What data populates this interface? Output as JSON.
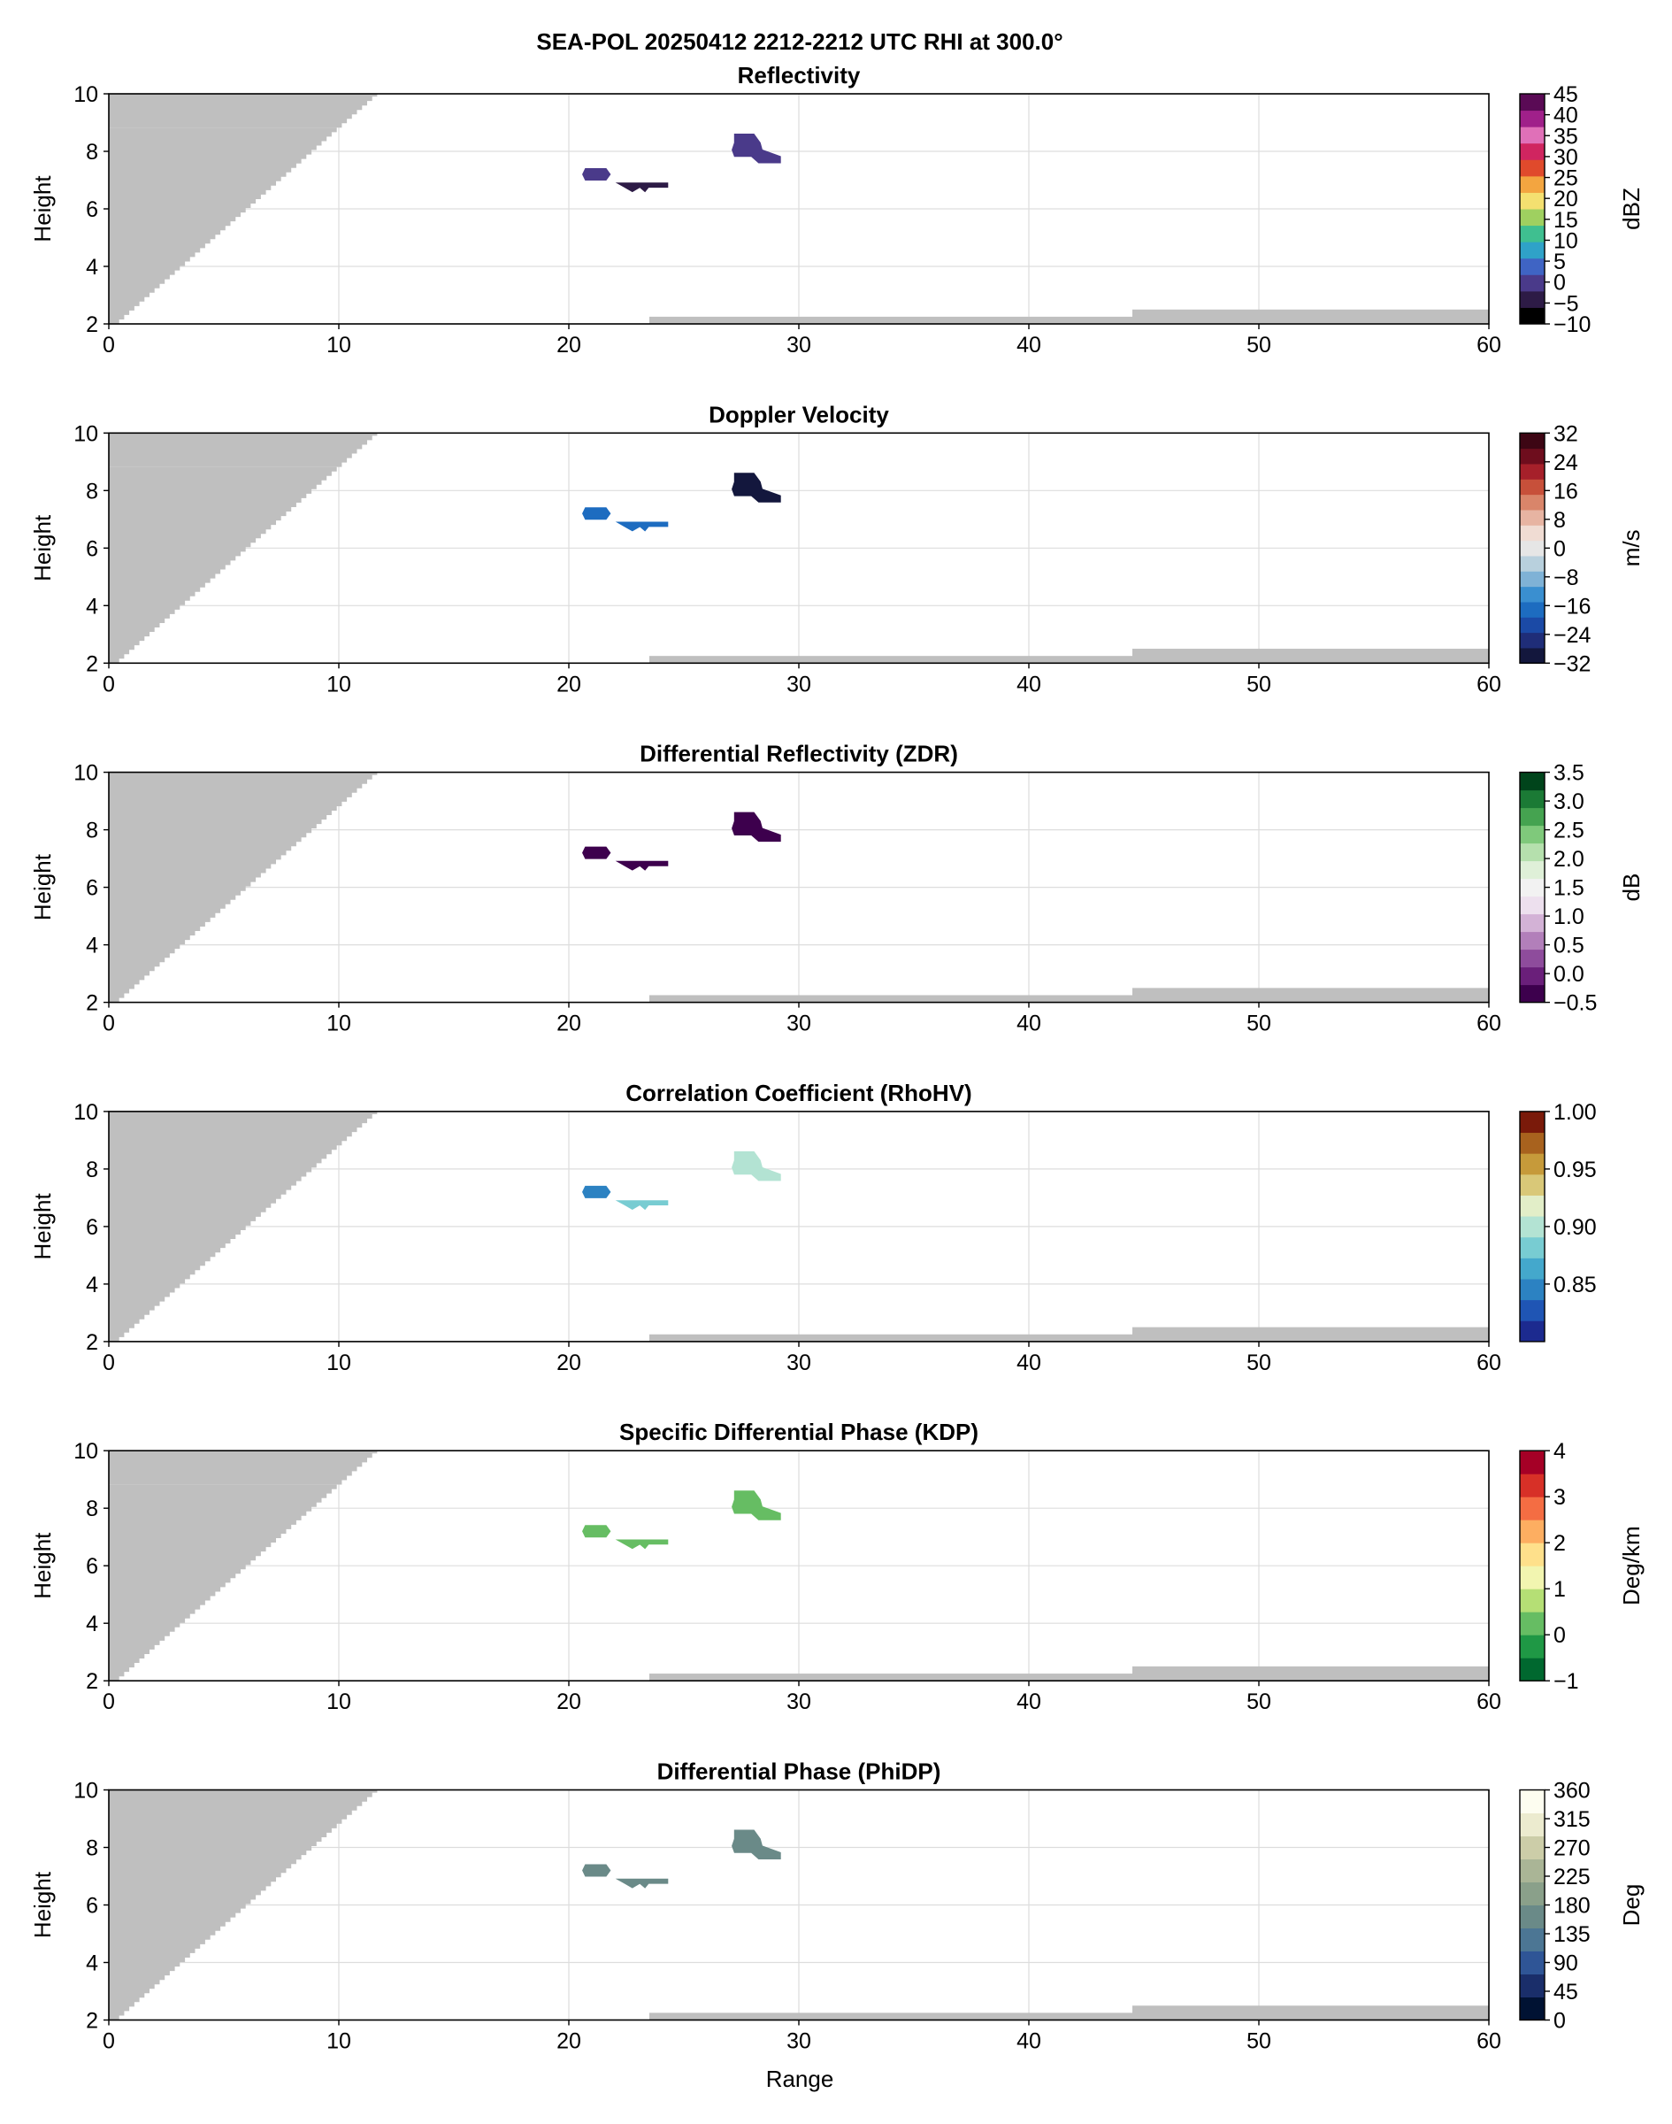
{
  "figure": {
    "suptitle": "SEA-POL 20250412 2212-2212 UTC RHI at 300.0°",
    "ylabel": "Height",
    "xlabel": "Range",
    "xlim": [
      0,
      60
    ],
    "ylim": [
      2,
      10
    ],
    "xticks": [
      0,
      10,
      20,
      30,
      40,
      50,
      60
    ],
    "yticks": [
      2,
      4,
      6,
      8,
      10
    ],
    "grid": true,
    "blockage_color": "#bfbfbf"
  },
  "chart_data": [
    {
      "type": "heatmap",
      "title": "Reflectivity",
      "colorbar": {
        "label": "dBZ",
        "min": -10,
        "max": 45,
        "ticks": [
          -10,
          -5,
          0,
          5,
          10,
          15,
          20,
          25,
          30,
          35,
          40,
          45
        ],
        "colors": [
          "#000000",
          "#2d1b46",
          "#4a3a8a",
          "#3f64c4",
          "#2fa2c8",
          "#3fbf90",
          "#9fd060",
          "#f4e070",
          "#f3a540",
          "#e04a2c",
          "#d02560",
          "#e070b8",
          "#a0208a",
          "#5a0a55"
        ]
      },
      "cells": [
        {
          "x": [
            20.6,
            21.8
          ],
          "y": [
            7.0,
            7.4
          ],
          "value": -2
        },
        {
          "x": [
            22.1,
            24.3
          ],
          "y": [
            6.6,
            6.9
          ],
          "value": -3
        },
        {
          "x": [
            27.1,
            29.2
          ],
          "y": [
            7.6,
            8.6
          ],
          "value": 1
        }
      ]
    },
    {
      "type": "heatmap",
      "title": "Doppler Velocity",
      "colorbar": {
        "label": "m/s",
        "min": -32,
        "max": 32,
        "ticks": [
          -32,
          -24,
          -16,
          -8,
          0,
          8,
          16,
          24,
          32
        ],
        "colors": [
          "#13173d",
          "#1f2d78",
          "#1b4aa6",
          "#1d6cc0",
          "#3a8fd0",
          "#7fb2d6",
          "#b8d0dd",
          "#e6e6e6",
          "#f0dcd3",
          "#e7b4a2",
          "#d9856a",
          "#c7503a",
          "#a6202a",
          "#6e0d1d",
          "#3d0614"
        ]
      },
      "cells": [
        {
          "x": [
            20.6,
            21.8
          ],
          "y": [
            7.0,
            7.4
          ],
          "value": -18
        },
        {
          "x": [
            22.1,
            24.3
          ],
          "y": [
            6.6,
            6.9
          ],
          "value": -17
        },
        {
          "x": [
            27.1,
            29.2
          ],
          "y": [
            7.6,
            8.6
          ],
          "value": -29
        }
      ]
    },
    {
      "type": "heatmap",
      "title": "Differential Reflectivity (ZDR)",
      "colorbar": {
        "label": "dB",
        "min": -0.5,
        "max": 3.5,
        "ticks": [
          -0.5,
          0.0,
          0.5,
          1.0,
          1.5,
          2.0,
          2.5,
          3.0,
          3.5
        ],
        "colors": [
          "#3d004d",
          "#6a1f7a",
          "#8e4c9c",
          "#b27fba",
          "#d3b2d6",
          "#ede0ee",
          "#f2f2f2",
          "#dff0d8",
          "#b5e0ad",
          "#7fc97b",
          "#45a350",
          "#1b7a35",
          "#00441b"
        ]
      },
      "cells": [
        {
          "x": [
            20.6,
            21.8
          ],
          "y": [
            7.0,
            7.4
          ],
          "value": -0.2
        },
        {
          "x": [
            22.1,
            24.3
          ],
          "y": [
            6.6,
            6.9
          ],
          "value": -0.3
        },
        {
          "x": [
            27.1,
            29.2
          ],
          "y": [
            7.6,
            8.6
          ],
          "value": -0.35
        }
      ]
    },
    {
      "type": "heatmap",
      "title": "Correlation Coefficient (RhoHV)",
      "colorbar": {
        "label": "",
        "min": 0.8,
        "max": 1.0,
        "ticks": [
          0.85,
          0.9,
          0.95,
          1.0
        ],
        "tick_labels": [
          "0.85",
          "0.90",
          "0.95",
          "1.00"
        ],
        "colors": [
          "#1c2a8f",
          "#1f55b4",
          "#2c82c2",
          "#44a8cc",
          "#78ccd2",
          "#b3e3d3",
          "#e2eec8",
          "#d9c878",
          "#c69a3a",
          "#a8621e",
          "#7a1a0a"
        ]
      },
      "cells": [
        {
          "x": [
            20.6,
            21.8
          ],
          "y": [
            7.0,
            7.4
          ],
          "value": 0.84
        },
        {
          "x": [
            22.1,
            24.3
          ],
          "y": [
            6.6,
            6.9
          ],
          "value": 0.89
        },
        {
          "x": [
            27.1,
            29.2
          ],
          "y": [
            7.6,
            8.6
          ],
          "value": 0.9
        }
      ]
    },
    {
      "type": "heatmap",
      "title": "Specific Differential Phase (KDP)",
      "colorbar": {
        "label": "Deg/km",
        "min": -1,
        "max": 4,
        "ticks": [
          -1,
          0,
          1,
          2,
          3,
          4
        ],
        "colors": [
          "#00682f",
          "#1f9845",
          "#66bd63",
          "#b5df75",
          "#f2f5b0",
          "#fee08b",
          "#fdae61",
          "#f46d43",
          "#d73027",
          "#a50026"
        ]
      },
      "cells": [
        {
          "x": [
            20.6,
            21.8
          ],
          "y": [
            7.0,
            7.4
          ],
          "value": 0
        },
        {
          "x": [
            22.1,
            24.3
          ],
          "y": [
            6.6,
            6.9
          ],
          "value": 0
        },
        {
          "x": [
            27.1,
            29.2
          ],
          "y": [
            7.6,
            8.6
          ],
          "value": 0
        }
      ]
    },
    {
      "type": "heatmap",
      "title": "Differential Phase (PhiDP)",
      "colorbar": {
        "label": "Deg",
        "min": 0,
        "max": 360,
        "ticks": [
          0,
          45,
          90,
          135,
          180,
          225,
          270,
          315,
          360
        ],
        "colors": [
          "#001233",
          "#1a2e6a",
          "#2f5596",
          "#4c7694",
          "#6a8a88",
          "#8aa08a",
          "#aab596",
          "#cccda8",
          "#ecebcf",
          "#fdfdf0"
        ]
      },
      "cells": [
        {
          "x": [
            20.6,
            21.8
          ],
          "y": [
            7.0,
            7.4
          ],
          "value": 150
        },
        {
          "x": [
            22.1,
            24.3
          ],
          "y": [
            6.6,
            6.9
          ],
          "value": 150
        },
        {
          "x": [
            27.1,
            29.2
          ],
          "y": [
            7.6,
            8.6
          ],
          "value": 150
        }
      ]
    }
  ]
}
